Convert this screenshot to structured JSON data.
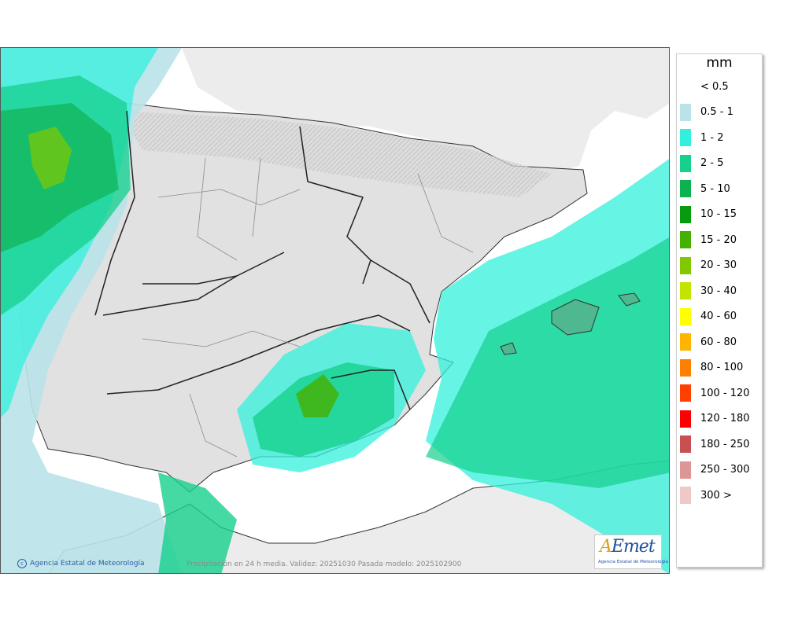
{
  "legend": {
    "unit": "mm",
    "items": [
      {
        "label": "< 0.5",
        "color": ""
      },
      {
        "label": "0.5 - 1",
        "color": "#b9e3e9"
      },
      {
        "label": "1 - 2",
        "color": "#33f0dc"
      },
      {
        "label": "2 - 5",
        "color": "#16d08c"
      },
      {
        "label": "5 - 10",
        "color": "#0eb150"
      },
      {
        "label": "10 - 15",
        "color": "#089a10"
      },
      {
        "label": "15 - 20",
        "color": "#46b000"
      },
      {
        "label": "20 - 30",
        "color": "#82c800"
      },
      {
        "label": "30 - 40",
        "color": "#c2e400"
      },
      {
        "label": "40 - 60",
        "color": "#ffff00"
      },
      {
        "label": "60 - 80",
        "color": "#ffb400"
      },
      {
        "label": "80 - 100",
        "color": "#ff8000"
      },
      {
        "label": "100 - 120",
        "color": "#ff4000"
      },
      {
        "label": "120 - 180",
        "color": "#ff0000"
      },
      {
        "label": "180 - 250",
        "color": "#c85050"
      },
      {
        "label": "250 - 300",
        "color": "#dc9696"
      },
      {
        "label": "300 >",
        "color": "#f0c8c8"
      }
    ]
  },
  "caption": "Precipitación en 24 h media. Validez: 20251030 Pasada modelo: 2025102900",
  "credit": "Agencia Estatal de Meteorología",
  "logo": {
    "mark_a": "A",
    "mark_rest": "Emet",
    "subtitle": "Agencia Estatal de Meteorología"
  },
  "colors": {
    "land": "#e1e1e1",
    "lightland": "#ededed",
    "border": "#222222"
  }
}
